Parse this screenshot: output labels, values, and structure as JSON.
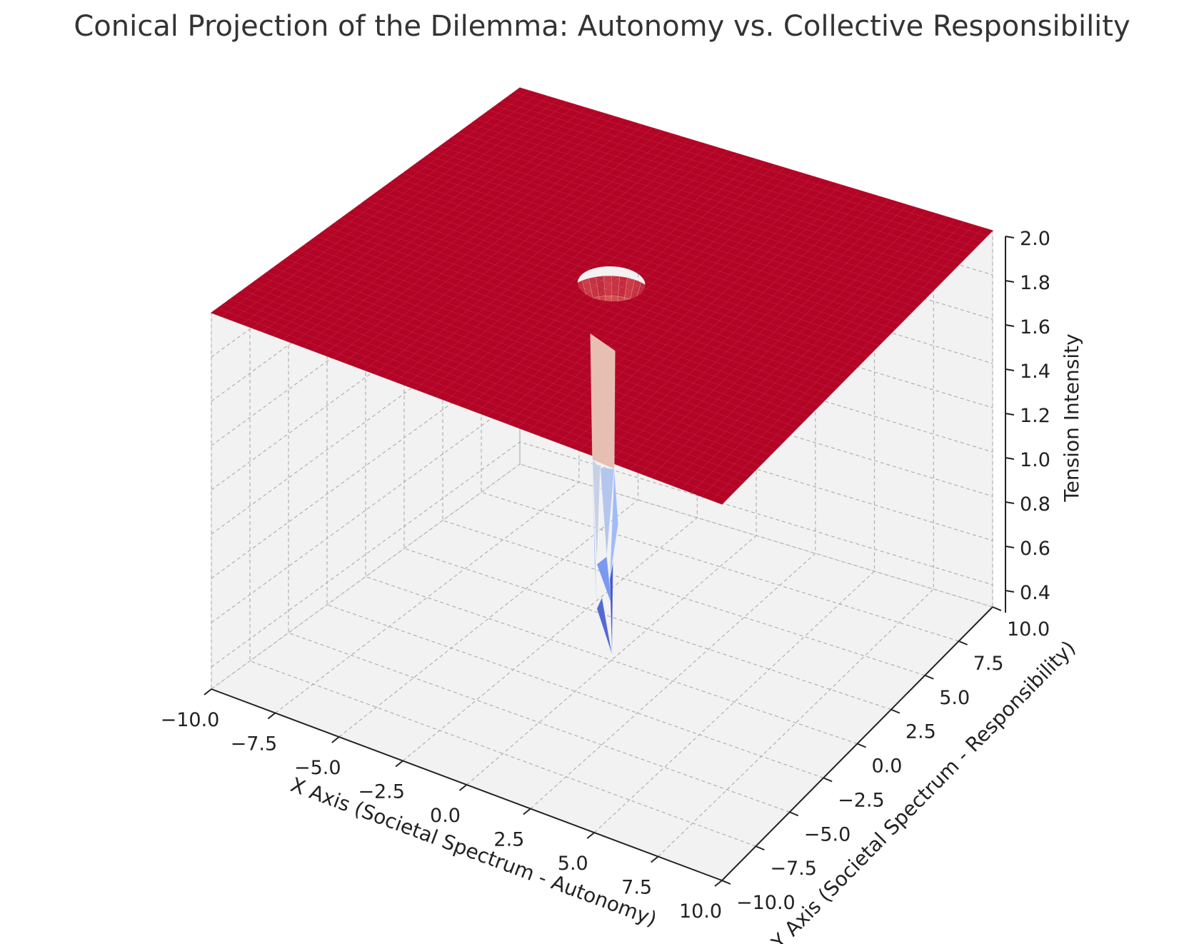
{
  "chart_data": {
    "type": "surface3d",
    "title": "Conical Projection of the Dilemma: Autonomy vs. Collective Responsibility",
    "xlabel": "X Axis (Societal Spectrum - Autonomy)",
    "ylabel": "Y Axis (Societal Spectrum - Responsibility)",
    "zlabel": "Tension Intensity",
    "xlim": [
      -10,
      10
    ],
    "ylim": [
      -10,
      10
    ],
    "zlim": [
      0.3,
      2.0
    ],
    "x_ticks": [
      "−10.0",
      "−7.5",
      "−5.0",
      "−2.5",
      "0.0",
      "2.5",
      "5.0",
      "7.5",
      "10.0"
    ],
    "y_ticks": [
      "−10.0",
      "−7.5",
      "−5.0",
      "−2.5",
      "0.0",
      "2.5",
      "5.0",
      "7.5",
      "10.0"
    ],
    "z_ticks": [
      "0.4",
      "0.6",
      "0.8",
      "1.0",
      "1.2",
      "1.4",
      "1.6",
      "1.8",
      "2.0"
    ],
    "x_tick_values": [
      -10,
      -7.5,
      -5,
      -2.5,
      0,
      2.5,
      5,
      7.5,
      10
    ],
    "y_tick_values": [
      -10,
      -7.5,
      -5,
      -2.5,
      0,
      2.5,
      5,
      7.5,
      10
    ],
    "z_tick_values": [
      0.4,
      0.6,
      0.8,
      1.0,
      1.2,
      1.4,
      1.6,
      1.8,
      2.0
    ],
    "surface": {
      "plateau_z": 2.0,
      "min_z": 0.33,
      "dip_center": [
        0,
        0
      ],
      "colormap": "coolwarm"
    },
    "grid": true,
    "colors": {
      "surface_high": "#b40426",
      "surface_low": "#3b4cc0",
      "pane": "#f2f2f2",
      "grid": "#b0b0b0"
    }
  }
}
